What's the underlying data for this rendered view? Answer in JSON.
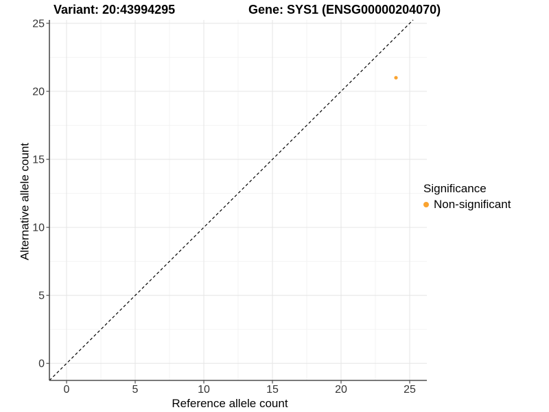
{
  "chart_data": {
    "type": "scatter",
    "title_left": "Variant: 20:43994295",
    "title_right": "Gene: SYS1 (ENSG00000204070)",
    "xlabel": "Reference allele count",
    "ylabel": "Alternative allele count",
    "xlim": [
      -1.25,
      26.25
    ],
    "ylim": [
      -1.25,
      25.25
    ],
    "x_ticks": [
      0,
      5,
      10,
      15,
      20,
      25
    ],
    "y_ticks": [
      0,
      5,
      10,
      15,
      20,
      25
    ],
    "x_minor_ticks": [
      2.5,
      7.5,
      12.5,
      17.5,
      22.5
    ],
    "y_minor_ticks": [
      2.5,
      7.5,
      12.5,
      17.5,
      22.5
    ],
    "grid": "major+minor",
    "identity_line": {
      "type": "y=x",
      "style": "dashed",
      "color": "#000000"
    },
    "series": [
      {
        "name": "Non-significant",
        "color": "#FAA32F",
        "point_radius": 2.6,
        "points": [
          {
            "x": 24,
            "y": 21
          }
        ]
      }
    ],
    "legend": {
      "title": "Significance",
      "position": "right",
      "items": [
        {
          "label": "Non-significant",
          "color": "#FAA32F"
        }
      ]
    }
  }
}
